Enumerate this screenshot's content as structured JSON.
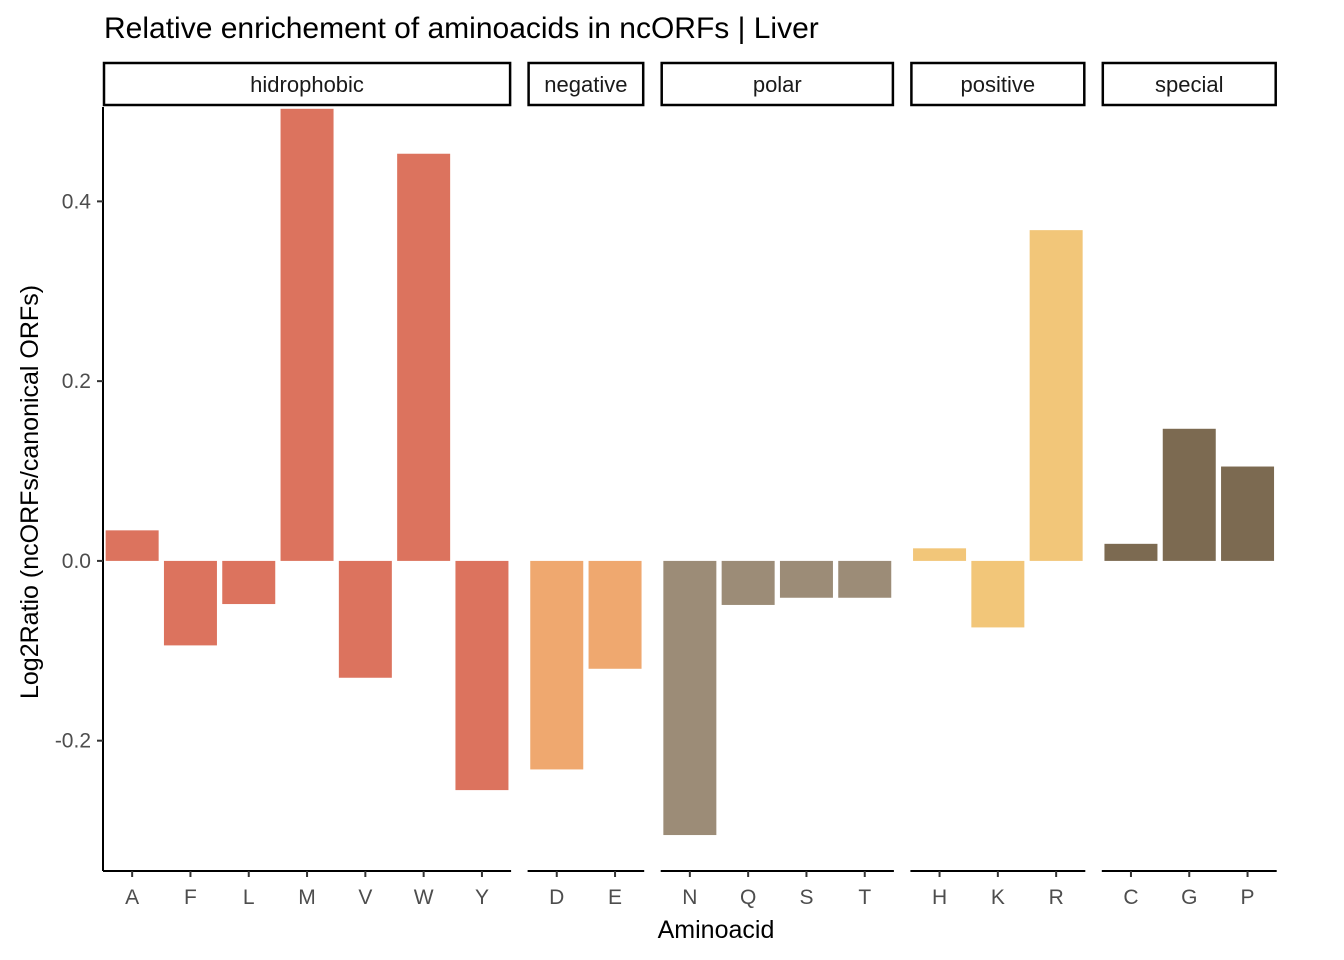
{
  "chart_data": {
    "type": "bar",
    "title": "Relative enrichement of aminoacids in ncORFs | Liver",
    "xlabel": "Aminoacid",
    "ylabel": "Log2Ratio (ncORFs/canonical ORFs)",
    "ylim": [
      -0.345,
      0.505
    ],
    "yticks": [
      -0.2,
      0.0,
      0.2,
      0.4
    ],
    "ytick_labels": [
      "-0.2",
      "0.0",
      "0.2",
      "0.4"
    ],
    "grid": false,
    "legend": "none",
    "facets": [
      {
        "name": "hidrophobic",
        "color": "#DC735E",
        "categories": [
          "A",
          "F",
          "L",
          "M",
          "V",
          "W",
          "Y"
        ],
        "values": [
          0.034,
          -0.094,
          -0.048,
          0.503,
          -0.13,
          0.453,
          -0.255
        ]
      },
      {
        "name": "negative",
        "color": "#EFA86F",
        "categories": [
          "D",
          "E"
        ],
        "values": [
          -0.232,
          -0.12
        ]
      },
      {
        "name": "polar",
        "color": "#9C8C77",
        "categories": [
          "N",
          "Q",
          "S",
          "T"
        ],
        "values": [
          -0.305,
          -0.049,
          -0.041,
          -0.041
        ]
      },
      {
        "name": "positive",
        "color": "#F2C679",
        "categories": [
          "H",
          "K",
          "R"
        ],
        "values": [
          0.014,
          -0.074,
          0.368
        ]
      },
      {
        "name": "special",
        "color": "#7C6A51",
        "categories": [
          "C",
          "G",
          "P"
        ],
        "values": [
          0.019,
          0.147,
          0.105
        ]
      }
    ]
  }
}
